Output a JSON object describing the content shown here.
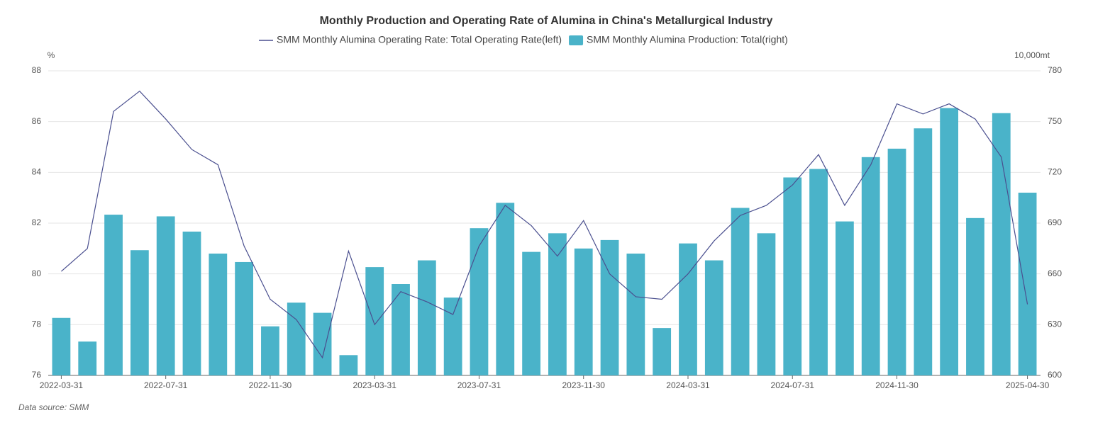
{
  "chart_data": {
    "type": "bar_line",
    "title": "Monthly Production and Operating Rate of Alumina in China's Metallurgical Industry",
    "y_label": "%",
    "y2_label": "10,000mt",
    "source": "Data source:  SMM",
    "categories": [
      "2022-03-31",
      null,
      null,
      null,
      "2022-07-31",
      null,
      null,
      null,
      "2022-11-30",
      null,
      null,
      null,
      "2023-03-31",
      null,
      null,
      null,
      "2023-07-31",
      null,
      null,
      null,
      "2023-11-30",
      null,
      null,
      null,
      "2024-03-31",
      null,
      null,
      null,
      "2024-07-31",
      null,
      null,
      null,
      "2024-11-30",
      null,
      null,
      null,
      null,
      "2025-04-30"
    ],
    "series": [
      {
        "name": "SMM Monthly Alumina Operating Rate: Total Operating Rate(left)",
        "type": "line",
        "color": "#4a4f8f",
        "axis": "y",
        "values": [
          80.1,
          81.0,
          86.4,
          87.2,
          86.1,
          84.9,
          84.3,
          81.1,
          79.0,
          78.2,
          76.7,
          80.9,
          78.0,
          79.3,
          78.9,
          78.4,
          81.1,
          82.7,
          81.9,
          80.7,
          82.1,
          80.0,
          79.1,
          79.0,
          80.0,
          81.3,
          82.3,
          82.7,
          83.5,
          84.7,
          82.7,
          84.3,
          86.7,
          86.3,
          86.7,
          86.1,
          84.6,
          78.8
        ]
      },
      {
        "name": "SMM Monthly Alumina Production: Total(right)",
        "type": "bar",
        "color": "#4ab3c9",
        "axis": "y2",
        "values": [
          634,
          620,
          695,
          674,
          694,
          685,
          672,
          667,
          629,
          643,
          637,
          612,
          664,
          654,
          668,
          646,
          687,
          702,
          673,
          684,
          675,
          680,
          672,
          628,
          678,
          668,
          699,
          684,
          717,
          722,
          691,
          729,
          734,
          746,
          758,
          693,
          755,
          708
        ]
      }
    ],
    "ylim": [
      76,
      88
    ],
    "yticks": [
      76,
      78,
      80,
      82,
      84,
      86,
      88
    ],
    "y2lim": [
      600,
      780
    ],
    "y2ticks": [
      600,
      630,
      660,
      690,
      720,
      750,
      780
    ],
    "grid": true
  }
}
